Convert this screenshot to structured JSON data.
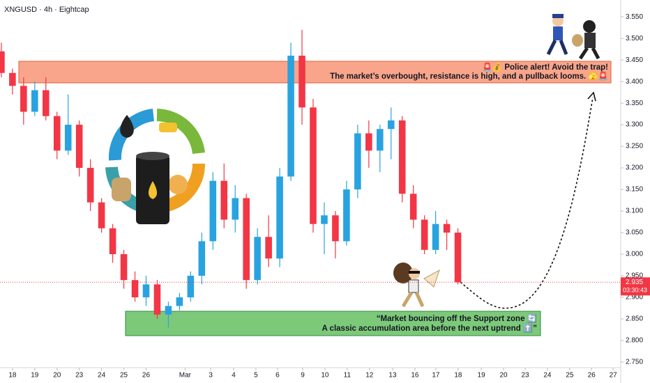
{
  "chart_data": {
    "type": "candlestick",
    "title": "XNGUSD · 4h · Eightcap",
    "up_color": "#29a3e0",
    "down_color": "#f23645",
    "x": [
      -0.5,
      0,
      0.5,
      1,
      1.5,
      2,
      2.5,
      3,
      3.5,
      4,
      4.5,
      5,
      5.5,
      6,
      6.5,
      7,
      7.5,
      8,
      8.5,
      9,
      9.5,
      10,
      10.5,
      11,
      11.5,
      12,
      12.5,
      13,
      13.5,
      14,
      14.5,
      15,
      15.5,
      16,
      16.5,
      17,
      17.5,
      18,
      18.5,
      19,
      19.5,
      20
    ],
    "open": [
      3.47,
      3.42,
      3.39,
      3.33,
      3.38,
      3.32,
      3.24,
      3.3,
      3.2,
      3.12,
      3.06,
      3.0,
      2.94,
      2.9,
      2.93,
      2.86,
      2.88,
      2.9,
      2.95,
      3.03,
      3.17,
      3.08,
      3.13,
      2.94,
      3.04,
      2.99,
      3.18,
      3.46,
      3.34,
      3.07,
      3.09,
      3.03,
      3.15,
      3.28,
      3.24,
      3.29,
      3.31,
      3.14,
      3.08,
      3.01,
      3.07,
      3.05
    ],
    "high": [
      3.49,
      3.43,
      3.41,
      3.4,
      3.41,
      3.33,
      3.37,
      3.31,
      3.22,
      3.13,
      3.07,
      3.01,
      2.96,
      2.95,
      2.94,
      2.89,
      2.91,
      2.96,
      3.05,
      3.19,
      3.21,
      3.16,
      3.14,
      3.06,
      3.09,
      3.2,
      3.49,
      3.52,
      3.36,
      3.12,
      3.1,
      3.17,
      3.3,
      3.31,
      3.3,
      3.34,
      3.32,
      3.16,
      3.09,
      3.1,
      3.08,
      3.06
    ],
    "low": [
      3.41,
      3.37,
      3.3,
      3.32,
      3.31,
      3.22,
      3.23,
      3.18,
      3.1,
      3.05,
      2.98,
      2.92,
      2.89,
      2.88,
      2.85,
      2.83,
      2.87,
      2.89,
      2.93,
      3.01,
      3.06,
      3.05,
      2.92,
      2.93,
      2.97,
      2.97,
      3.17,
      3.3,
      3.05,
      3.0,
      2.99,
      3.02,
      3.13,
      3.2,
      3.19,
      3.22,
      3.12,
      3.06,
      3.0,
      3.0,
      3.01,
      2.93
    ],
    "close": [
      3.42,
      3.39,
      3.33,
      3.38,
      3.32,
      3.24,
      3.3,
      3.2,
      3.12,
      3.06,
      3.0,
      2.94,
      2.9,
      2.93,
      2.86,
      2.88,
      2.9,
      2.95,
      3.03,
      3.17,
      3.08,
      3.13,
      2.94,
      3.04,
      2.99,
      3.18,
      3.46,
      3.34,
      3.07,
      3.09,
      3.03,
      3.15,
      3.28,
      3.24,
      3.29,
      3.31,
      3.14,
      3.08,
      3.01,
      3.07,
      3.05,
      2.935
    ],
    "last_price": 2.935,
    "last_price_color": "#f23645",
    "countdown": "03:30:43",
    "xlim": [
      -0.56,
      27.31
    ],
    "xticks": [
      {
        "value": 0,
        "label": "18"
      },
      {
        "value": 1,
        "label": "19"
      },
      {
        "value": 2,
        "label": "20"
      },
      {
        "value": 3,
        "label": "23"
      },
      {
        "value": 4,
        "label": "24"
      },
      {
        "value": 5,
        "label": "25"
      },
      {
        "value": 6,
        "label": "26"
      },
      {
        "value": 7.75,
        "label": "Mar"
      },
      {
        "value": 8.9,
        "label": "3"
      },
      {
        "value": 9.93,
        "label": "4"
      },
      {
        "value": 10.93,
        "label": "5"
      },
      {
        "value": 11.9,
        "label": "6"
      },
      {
        "value": 13.03,
        "label": "9"
      },
      {
        "value": 14.03,
        "label": "10"
      },
      {
        "value": 15.03,
        "label": "11"
      },
      {
        "value": 16.03,
        "label": "12"
      },
      {
        "value": 17.07,
        "label": "13"
      },
      {
        "value": 18.07,
        "label": "16"
      },
      {
        "value": 19.01,
        "label": "17"
      },
      {
        "value": 20.01,
        "label": "18"
      },
      {
        "value": 21.05,
        "label": "19"
      },
      {
        "value": 22.05,
        "label": "20"
      },
      {
        "value": 23.02,
        "label": "23"
      },
      {
        "value": 24.02,
        "label": "24"
      },
      {
        "value": 25.02,
        "label": "25"
      },
      {
        "value": 26,
        "label": "26"
      },
      {
        "value": 26.97,
        "label": "27"
      }
    ],
    "ylim": [
      2.737,
      3.589
    ],
    "yticks": [
      {
        "value": 2.75,
        "label": "2.750"
      },
      {
        "value": 2.8,
        "label": "2.800"
      },
      {
        "value": 2.85,
        "label": "2.850"
      },
      {
        "value": 2.9,
        "label": "2.900"
      },
      {
        "value": 2.95,
        "label": "2.950"
      },
      {
        "value": 3.0,
        "label": "3.000"
      },
      {
        "value": 3.05,
        "label": "3.050"
      },
      {
        "value": 3.1,
        "label": "3.100"
      },
      {
        "value": 3.15,
        "label": "3.150"
      },
      {
        "value": 3.2,
        "label": "3.200"
      },
      {
        "value": 3.25,
        "label": "3.250"
      },
      {
        "value": 3.3,
        "label": "3.300"
      },
      {
        "value": 3.35,
        "label": "3.350"
      },
      {
        "value": 3.4,
        "label": "3.400"
      },
      {
        "value": 3.45,
        "label": "3.450"
      },
      {
        "value": 3.5,
        "label": "3.500"
      },
      {
        "value": 3.55,
        "label": "3.550"
      }
    ],
    "annotations": {
      "resistance_line1": "🚨💰 Police alert!  Avoid the trap!",
      "resistance_line2": "The market’s overbought, resistance is high, and a pullback looms. 🫣🚨",
      "support_line1": "“Market bouncing off the Support zone 🔄",
      "support_line2": "A classic accumulation area before the next uptrend ⬆️”"
    }
  }
}
